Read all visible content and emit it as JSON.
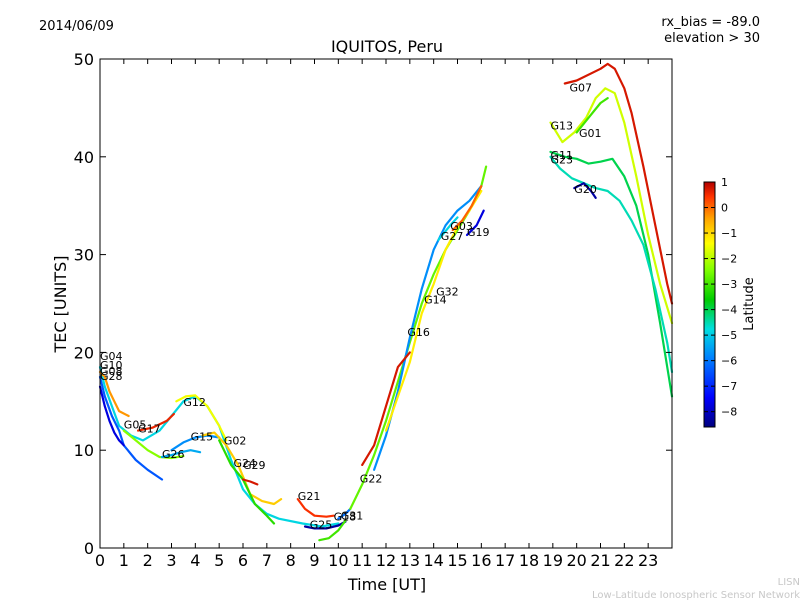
{
  "header": {
    "date": "2014/06/09",
    "bias": "rx_bias = -89.0",
    "elevation": "elevation > 30"
  },
  "footer": {
    "line1": "LISN",
    "line2": "Low-Latitude Ionospheric Sensor Network"
  },
  "chart_data": {
    "type": "scatter",
    "title": "IQUITOS, Peru",
    "xlabel": "Time [UT]",
    "ylabel": "TEC [UNITS]",
    "xlim": [
      0,
      24
    ],
    "ylim": [
      0,
      50
    ],
    "xticks": [
      0,
      1,
      2,
      3,
      4,
      5,
      6,
      7,
      8,
      9,
      10,
      11,
      12,
      13,
      14,
      15,
      16,
      17,
      18,
      19,
      20,
      21,
      22,
      23
    ],
    "yticks": [
      0,
      10,
      20,
      30,
      40,
      50
    ],
    "colorbar": {
      "label": "Latitude",
      "min": -8.6,
      "max": 1.0,
      "ticks": [
        1,
        0,
        -1,
        -2,
        -3,
        -4,
        -5,
        -6,
        -7,
        -8
      ],
      "colors": [
        "#00007f",
        "#0000ff",
        "#007fff",
        "#00dfdf",
        "#00cc00",
        "#7fff00",
        "#ffff00",
        "#ffa500",
        "#ff3300",
        "#b00000"
      ]
    },
    "series": [
      {
        "name": "G04",
        "label_at": [
          0.0,
          19.2
        ],
        "lat": -5.5,
        "points": [
          [
            0.0,
            18.5
          ],
          [
            0.2,
            16.5
          ],
          [
            0.5,
            14.5
          ],
          [
            0.8,
            12.5
          ],
          [
            1.3,
            11.5
          ],
          [
            1.8,
            11.0
          ],
          [
            2.5,
            12.0
          ],
          [
            3.0,
            13.5
          ],
          [
            3.5,
            15.0
          ],
          [
            4.0,
            15.5
          ],
          [
            4.5,
            14.5
          ],
          [
            5.0,
            12.5
          ],
          [
            5.5,
            9.0
          ],
          [
            6.0,
            6.0
          ],
          [
            6.5,
            4.5
          ],
          [
            7.0,
            3.5
          ],
          [
            7.5,
            3.0
          ],
          [
            8.5,
            2.5
          ],
          [
            9.3,
            2.2
          ],
          [
            10.0,
            2.5
          ]
        ]
      },
      {
        "name": "G10",
        "label_at": [
          0.0,
          18.3
        ],
        "lat": -6.8,
        "points": [
          [
            0.0,
            17.5
          ],
          [
            0.2,
            15.5
          ],
          [
            0.5,
            13.5
          ],
          [
            0.8,
            12.0
          ],
          [
            1.0,
            10.5
          ],
          [
            1.5,
            9.0
          ],
          [
            2.0,
            8.0
          ],
          [
            2.6,
            7.0
          ]
        ]
      },
      {
        "name": "G28",
        "label_at": [
          0.0,
          17.2
        ],
        "lat": -7.8,
        "points": [
          [
            0.0,
            16.5
          ],
          [
            0.2,
            14.5
          ],
          [
            0.4,
            13.0
          ],
          [
            0.6,
            11.8
          ],
          [
            0.8,
            11.0
          ],
          [
            1.0,
            10.5
          ]
        ]
      },
      {
        "name": "G08",
        "label_at": [
          0.0,
          17.7
        ],
        "lat": -1.0,
        "points": [
          [
            0.0,
            18.0
          ],
          [
            0.2,
            17.5
          ],
          [
            0.4,
            16.0
          ],
          [
            0.6,
            15.0
          ],
          [
            0.8,
            14.0
          ],
          [
            1.2,
            13.5
          ]
        ]
      },
      {
        "name": "G05",
        "label_at": [
          1.0,
          12.2
        ],
        "lat": -3.2,
        "points": [
          [
            1.0,
            12.0
          ],
          [
            1.5,
            11.0
          ],
          [
            2.0,
            10.0
          ],
          [
            2.5,
            9.3
          ],
          [
            3.0,
            9.2
          ],
          [
            3.5,
            9.4
          ]
        ]
      },
      {
        "name": "G17",
        "label_at": [
          1.6,
          11.8
        ],
        "lat": 0.2,
        "points": [
          [
            1.6,
            12.0
          ],
          [
            2.2,
            12.3
          ],
          [
            2.8,
            13.0
          ],
          [
            3.1,
            13.7
          ]
        ]
      },
      {
        "name": "G26",
        "label_at": [
          2.6,
          9.2
        ],
        "lat": -6.0,
        "points": [
          [
            2.6,
            9.3
          ],
          [
            3.0,
            9.5
          ],
          [
            3.4,
            9.8
          ],
          [
            3.8,
            10.0
          ],
          [
            4.2,
            9.8
          ]
        ]
      },
      {
        "name": "G12",
        "label_at": [
          3.5,
          14.5
        ],
        "lat": -2.3,
        "points": [
          [
            3.2,
            15.0
          ],
          [
            3.6,
            15.5
          ],
          [
            4.0,
            15.6
          ],
          [
            4.5,
            14.5
          ],
          [
            5.0,
            12.5
          ],
          [
            5.3,
            11.0
          ]
        ]
      },
      {
        "name": "G15",
        "label_at": [
          3.8,
          11.0
        ],
        "lat": -6.3,
        "points": [
          [
            3.0,
            10.0
          ],
          [
            3.5,
            10.8
          ],
          [
            4.0,
            11.3
          ],
          [
            4.5,
            11.5
          ],
          [
            5.0,
            11.3
          ]
        ]
      },
      {
        "name": "G02",
        "label_at": [
          5.2,
          10.6
        ],
        "lat": -1.6,
        "points": [
          [
            4.3,
            11.5
          ],
          [
            4.8,
            11.8
          ],
          [
            5.3,
            10.5
          ],
          [
            5.8,
            8.5
          ],
          [
            6.3,
            5.5
          ],
          [
            6.8,
            4.8
          ],
          [
            7.3,
            4.5
          ],
          [
            7.6,
            5.0
          ]
        ]
      },
      {
        "name": "G24",
        "label_at": [
          5.6,
          8.3
        ],
        "lat": -4.0,
        "points": [
          [
            5.0,
            11.0
          ],
          [
            5.5,
            8.5
          ],
          [
            6.0,
            7.0
          ],
          [
            6.5,
            4.5
          ],
          [
            7.0,
            3.3
          ],
          [
            7.3,
            2.5
          ]
        ]
      },
      {
        "name": "G29",
        "label_at": [
          6.0,
          8.1
        ],
        "lat": 0.5,
        "points": [
          [
            6.0,
            7.0
          ],
          [
            6.3,
            6.8
          ],
          [
            6.6,
            6.5
          ]
        ]
      },
      {
        "name": "G21",
        "label_at": [
          8.3,
          4.9
        ],
        "lat": 0.0,
        "points": [
          [
            8.3,
            5.0
          ],
          [
            8.6,
            4.0
          ],
          [
            9.0,
            3.3
          ],
          [
            9.5,
            3.2
          ],
          [
            9.8,
            3.3
          ]
        ]
      },
      {
        "name": "G25",
        "label_at": [
          8.8,
          2.0
        ],
        "lat": -8.3,
        "points": [
          [
            8.6,
            2.2
          ],
          [
            9.0,
            2.0
          ],
          [
            9.5,
            2.0
          ],
          [
            10.0,
            2.3
          ],
          [
            10.3,
            2.7
          ]
        ]
      },
      {
        "name": "G18",
        "label_at": [
          9.8,
          2.8
        ],
        "lat": -3.8,
        "points": [
          [
            9.2,
            0.8
          ],
          [
            9.6,
            1.0
          ],
          [
            10.0,
            1.8
          ],
          [
            10.3,
            2.8
          ]
        ]
      },
      {
        "name": "G31",
        "label_at": [
          10.1,
          2.9
        ],
        "lat": -6.6,
        "points": [
          [
            10.0,
            3.0
          ],
          [
            10.3,
            3.5
          ],
          [
            10.5,
            4.0
          ]
        ]
      },
      {
        "name": "G22",
        "label_at": [
          10.9,
          6.7
        ],
        "lat": -3.5,
        "points": [
          [
            10.5,
            4.0
          ],
          [
            11.0,
            6.5
          ],
          [
            11.5,
            9.5
          ],
          [
            12.0,
            13.0
          ],
          [
            12.5,
            17.0
          ],
          [
            13.0,
            21.0
          ],
          [
            13.5,
            25.0
          ],
          [
            14.0,
            28.0
          ],
          [
            14.5,
            30.5
          ],
          [
            15.0,
            32.5
          ],
          [
            15.5,
            34.5
          ],
          [
            16.0,
            37.0
          ],
          [
            16.2,
            39.0
          ]
        ]
      },
      {
        "name": "G16",
        "label_at": [
          12.9,
          21.7
        ],
        "lat": -6.3,
        "points": [
          [
            11.5,
            8.0
          ],
          [
            12.0,
            11.5
          ],
          [
            12.5,
            16.0
          ],
          [
            13.0,
            21.5
          ],
          [
            13.5,
            26.5
          ],
          [
            14.0,
            30.5
          ],
          [
            14.5,
            33.0
          ],
          [
            15.0,
            34.5
          ],
          [
            15.5,
            35.5
          ],
          [
            16.0,
            37.0
          ]
        ]
      },
      {
        "name": "G14",
        "label_at": [
          13.6,
          25.0
        ],
        "lat": 0.5,
        "points": [
          [
            11.0,
            8.5
          ],
          [
            11.5,
            10.5
          ],
          [
            12.0,
            14.5
          ],
          [
            12.5,
            18.5
          ],
          [
            13.0,
            20.0
          ]
        ]
      },
      {
        "name": "G32",
        "label_at": [
          14.1,
          25.8
        ],
        "lat": -2.0,
        "points": [
          [
            12.0,
            12.0
          ],
          [
            12.5,
            15.5
          ],
          [
            13.0,
            19.0
          ],
          [
            13.5,
            24.0
          ],
          [
            14.0,
            27.0
          ],
          [
            14.5,
            30.5
          ],
          [
            15.0,
            32.8
          ],
          [
            15.5,
            34.5
          ],
          [
            16.0,
            36.5
          ]
        ]
      },
      {
        "name": "G27",
        "label_at": [
          14.3,
          31.5
        ],
        "lat": -5.5,
        "points": [
          [
            14.2,
            31.5
          ],
          [
            14.7,
            33.0
          ],
          [
            15.0,
            33.8
          ]
        ]
      },
      {
        "name": "G03",
        "label_at": [
          14.7,
          32.5
        ],
        "lat": -0.5,
        "points": [
          [
            14.8,
            32.5
          ],
          [
            15.2,
            33.5
          ],
          [
            15.6,
            35.0
          ],
          [
            16.0,
            37.0
          ]
        ]
      },
      {
        "name": "G19",
        "label_at": [
          15.4,
          31.9
        ],
        "lat": -7.8,
        "points": [
          [
            15.4,
            32.0
          ],
          [
            15.8,
            33.0
          ],
          [
            16.1,
            34.5
          ]
        ]
      },
      {
        "name": "G07",
        "label_at": [
          19.7,
          46.7
        ],
        "lat": 0.5,
        "points": [
          [
            19.5,
            47.5
          ],
          [
            20.0,
            47.8
          ],
          [
            21.0,
            49.0
          ],
          [
            21.3,
            49.5
          ],
          [
            21.6,
            49.0
          ],
          [
            22.0,
            47.0
          ],
          [
            22.3,
            44.5
          ],
          [
            22.8,
            39.0
          ],
          [
            23.3,
            33.0
          ],
          [
            23.8,
            27.0
          ],
          [
            24.0,
            25.0
          ]
        ]
      },
      {
        "name": "G13",
        "label_at": [
          18.9,
          42.8
        ],
        "lat": -2.6,
        "points": [
          [
            18.9,
            43.5
          ],
          [
            19.4,
            41.5
          ],
          [
            19.9,
            42.5
          ],
          [
            20.4,
            44.0
          ],
          [
            20.8,
            46.0
          ],
          [
            21.2,
            47.0
          ],
          [
            21.6,
            46.5
          ],
          [
            22.0,
            43.5
          ],
          [
            22.5,
            38.0
          ],
          [
            23.0,
            32.0
          ],
          [
            23.5,
            27.0
          ],
          [
            24.0,
            23.0
          ]
        ]
      },
      {
        "name": "G01",
        "label_at": [
          20.1,
          42.0
        ],
        "lat": -3.8,
        "points": [
          [
            20.0,
            42.5
          ],
          [
            20.5,
            44.0
          ],
          [
            21.0,
            45.5
          ],
          [
            21.3,
            46.0
          ]
        ]
      },
      {
        "name": "G11",
        "label_at": [
          18.9,
          39.8
        ],
        "lat": -4.7,
        "points": [
          [
            18.9,
            40.5
          ],
          [
            19.5,
            40.0
          ],
          [
            20.0,
            39.8
          ],
          [
            20.5,
            39.3
          ],
          [
            21.0,
            39.5
          ],
          [
            21.5,
            39.8
          ],
          [
            22.0,
            38.0
          ],
          [
            22.5,
            35.0
          ],
          [
            23.0,
            30.0
          ],
          [
            23.5,
            23.0
          ],
          [
            24.0,
            15.5
          ]
        ]
      },
      {
        "name": "G23",
        "label_at": [
          18.9,
          39.3
        ],
        "lat": -5.2,
        "points": [
          [
            18.9,
            40.0
          ],
          [
            19.3,
            38.8
          ],
          [
            19.8,
            37.8
          ],
          [
            20.3,
            37.3
          ],
          [
            20.8,
            36.8
          ],
          [
            21.3,
            36.5
          ],
          [
            21.8,
            35.5
          ],
          [
            22.3,
            33.5
          ],
          [
            22.8,
            31.0
          ],
          [
            23.3,
            26.5
          ],
          [
            23.8,
            21.0
          ],
          [
            24.0,
            18.0
          ]
        ]
      },
      {
        "name": "G20",
        "label_at": [
          19.9,
          36.3
        ],
        "lat": -8.3,
        "points": [
          [
            19.9,
            36.8
          ],
          [
            20.3,
            37.3
          ],
          [
            20.6,
            36.5
          ],
          [
            20.8,
            35.8
          ]
        ]
      }
    ]
  }
}
